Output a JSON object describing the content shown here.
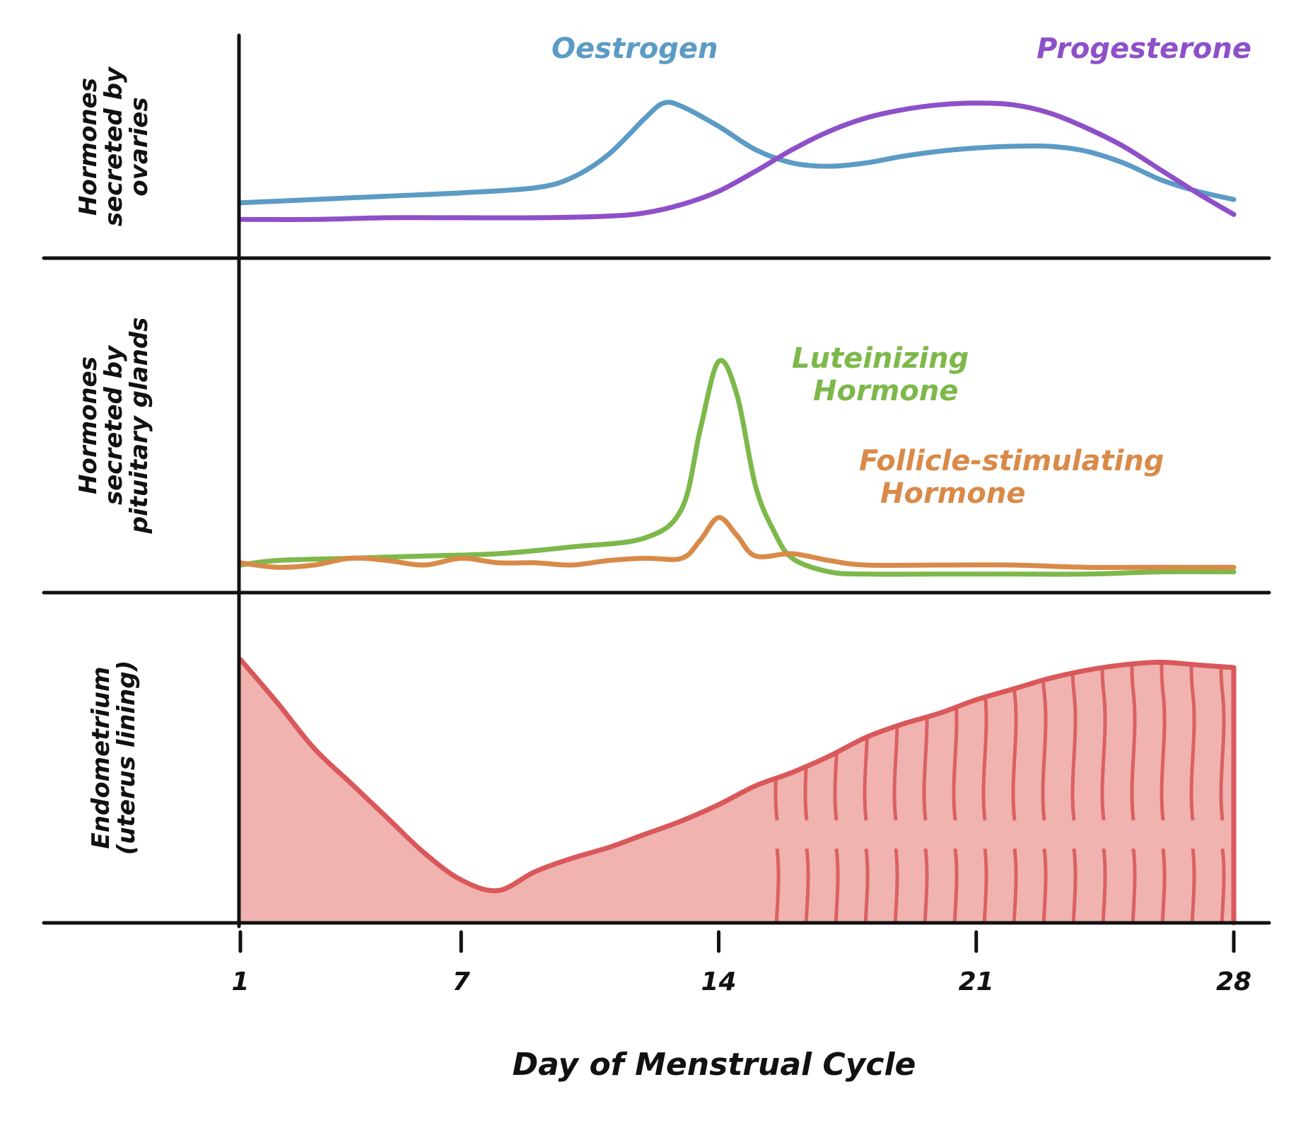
{
  "chart_data": {
    "type": "line",
    "xlabel": "Day of Menstrual Cycle",
    "x_ticks": [
      1,
      7,
      14,
      21,
      28
    ],
    "xlim": [
      1,
      28
    ],
    "panels": [
      {
        "ylabel_lines": [
          "Hormones",
          "secreted by",
          "ovaries"
        ],
        "ylim": [
          0,
          10
        ],
        "series": [
          {
            "name": "Oestrogen",
            "color": "#5B9BC5",
            "x": [
              1,
              3,
              5,
              7,
              9,
              10,
              11,
              12,
              12.5,
              13,
              14,
              15,
              16,
              17,
              18,
              19,
              20,
              21,
              22,
              23,
              24,
              25,
              26,
              27,
              28
            ],
            "y": [
              1.2,
              1.4,
              1.6,
              1.8,
              2.1,
              2.7,
              4.1,
              6.3,
              7.2,
              7.0,
              5.8,
              4.4,
              3.6,
              3.4,
              3.6,
              4.0,
              4.3,
              4.5,
              4.6,
              4.6,
              4.3,
              3.6,
              2.6,
              1.9,
              1.4
            ]
          },
          {
            "name": "Progesterone",
            "color": "#8E50C8",
            "x": [
              1,
              3,
              5,
              7,
              9,
              11,
              12,
              13,
              14,
              15,
              16,
              17,
              18,
              19,
              20,
              21,
              22,
              23,
              24,
              25,
              26,
              27,
              28
            ],
            "y": [
              0.2,
              0.2,
              0.3,
              0.3,
              0.3,
              0.4,
              0.6,
              1.1,
              1.9,
              3.1,
              4.4,
              5.5,
              6.3,
              6.8,
              7.1,
              7.2,
              7.1,
              6.6,
              5.7,
              4.6,
              3.2,
              1.8,
              0.5
            ]
          }
        ]
      },
      {
        "ylabel_lines": [
          "Hormones",
          "secreted by",
          "pituitary glands"
        ],
        "ylim": [
          0,
          10
        ],
        "series": [
          {
            "name": "Luteinizing Hormone",
            "label_lines": [
              "Luteinizing",
              "Hormone"
            ],
            "color": "#7DB84A",
            "x": [
              1,
              2,
              4,
              6,
              8,
              10,
              12,
              13,
              13.5,
              14,
              14.5,
              15,
              15.5,
              16,
              17,
              18,
              20,
              22,
              24,
              26,
              28
            ],
            "y": [
              0.5,
              0.7,
              0.8,
              0.9,
              1.0,
              1.3,
              1.7,
              3.0,
              6.5,
              9.5,
              8.0,
              4.0,
              2.0,
              0.8,
              0.2,
              0.1,
              0.1,
              0.1,
              0.1,
              0.2,
              0.2
            ]
          },
          {
            "name": "Follicle-stimulating Hormone",
            "label_lines": [
              "Follicle-stimulating",
              "Hormone"
            ],
            "color": "#D98A48",
            "x": [
              1,
              2,
              3,
              4,
              5,
              6,
              7,
              8,
              9,
              10,
              11,
              12,
              13,
              13.5,
              14,
              14.5,
              15,
              16,
              17,
              18,
              20,
              22,
              24,
              26,
              28
            ],
            "y": [
              0.6,
              0.4,
              0.5,
              0.8,
              0.7,
              0.5,
              0.8,
              0.6,
              0.6,
              0.5,
              0.7,
              0.8,
              0.8,
              1.6,
              2.6,
              1.8,
              0.9,
              1.0,
              0.7,
              0.5,
              0.5,
              0.5,
              0.4,
              0.4,
              0.4
            ]
          }
        ]
      },
      {
        "ylabel_lines": [
          "Endometrium",
          "(uterus lining)"
        ],
        "ylim": [
          0,
          10
        ],
        "series": [
          {
            "name": "Endometrium",
            "type": "area",
            "color": "#D9585A",
            "fill": "#F0B3B0",
            "x": [
              1,
              2,
              3,
              4,
              5,
              6,
              7,
              8,
              9,
              10,
              11,
              12,
              13,
              14,
              15,
              16,
              17,
              18,
              19,
              20,
              21,
              22,
              23,
              24,
              25,
              26,
              27,
              28
            ],
            "y": [
              9.8,
              8.2,
              6.5,
              5.2,
              3.9,
              2.6,
              1.6,
              1.2,
              1.9,
              2.4,
              2.8,
              3.3,
              3.8,
              4.4,
              5.1,
              5.6,
              6.2,
              6.9,
              7.4,
              7.8,
              8.3,
              8.7,
              9.1,
              9.4,
              9.6,
              9.7,
              9.6,
              9.5
            ]
          }
        ]
      }
    ]
  }
}
